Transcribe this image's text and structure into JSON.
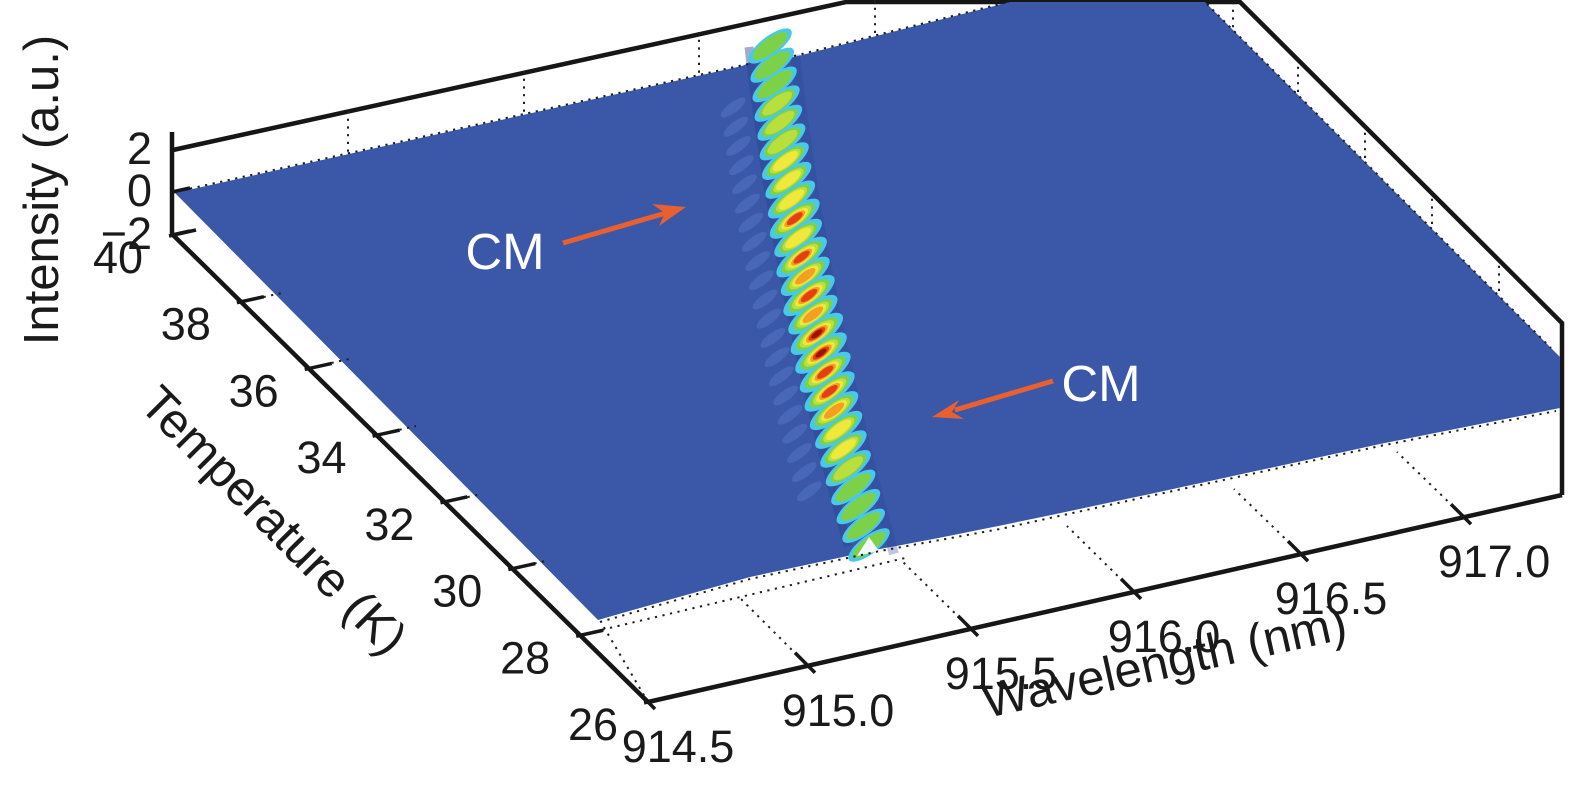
{
  "figure": {
    "kind": "3d-surface-plot",
    "background": "#ffffff"
  },
  "axes": {
    "wavelength": {
      "label": "Wavelength (nm)",
      "ticks": [
        "914.5",
        "915.0",
        "915.5",
        "916.0",
        "916.5",
        "917.0"
      ]
    },
    "temperature": {
      "label": "Temperature (K)",
      "ticks": [
        "40",
        "38",
        "36",
        "34",
        "32",
        "30",
        "28",
        "26"
      ]
    },
    "intensity": {
      "label": "Intensity (a.u.)",
      "ticks": [
        "2",
        "0",
        "−2"
      ]
    }
  },
  "annotations": {
    "cm1": "CM",
    "cm2": "CM"
  },
  "theme": {
    "surface_blue": "#3A57A8",
    "edge_black": "#161616",
    "ink": "#1a1a1a",
    "arrow_orange": "#E8602F",
    "annotation_white": "#ffffff",
    "ghost_blue": "#5E82CC",
    "shadow_blue": "#2C4495",
    "notch_white": "#F2FAFC",
    "ridge_palette": [
      "#49C9E8",
      "#7CD148",
      "#B9DF3C",
      "#F0E93C",
      "#F59E22",
      "#E63E14",
      "#9E1200"
    ]
  },
  "chart_data": {
    "type": "surface",
    "title": "",
    "x_axis": {
      "label": "Wavelength (nm)",
      "range": [
        914.5,
        917.3
      ],
      "ticks": [
        914.5,
        915.0,
        915.5,
        916.0,
        916.5,
        917.0
      ]
    },
    "y_axis": {
      "label": "Temperature (K)",
      "range": [
        26,
        40
      ],
      "ticks": [
        40,
        38,
        36,
        34,
        32,
        30,
        28,
        26
      ]
    },
    "z_axis": {
      "label": "Intensity (a.u.)",
      "range": [
        -2,
        2
      ],
      "ticks": [
        2,
        0,
        -2
      ]
    },
    "baseline_intensity_au": 0,
    "colormap": "jet",
    "grid": "dotted",
    "surface_color_at_baseline": "#3A57A8",
    "series": [
      {
        "name": "CM emission ridge",
        "columns": [
          "temperature_K",
          "wavelength_nm",
          "relative_intensity"
        ],
        "points": [
          [
            40.0,
            916.17,
            0.55
          ],
          [
            39.5,
            916.14,
            0.55
          ],
          [
            38.9,
            916.1,
            0.58
          ],
          [
            38.4,
            916.07,
            0.62
          ],
          [
            37.8,
            916.04,
            0.6
          ],
          [
            37.3,
            916.0,
            0.65
          ],
          [
            36.8,
            915.97,
            0.7
          ],
          [
            36.2,
            915.94,
            0.66
          ],
          [
            35.7,
            915.9,
            0.72
          ],
          [
            35.2,
            915.87,
            0.85
          ],
          [
            34.6,
            915.84,
            0.74
          ],
          [
            34.1,
            915.8,
            0.88
          ],
          [
            33.5,
            915.77,
            0.8
          ],
          [
            33.0,
            915.74,
            0.92
          ],
          [
            32.5,
            915.7,
            0.82
          ],
          [
            31.9,
            915.67,
            0.97
          ],
          [
            31.4,
            915.63,
            0.93
          ],
          [
            30.8,
            915.6,
            0.9
          ],
          [
            30.3,
            915.57,
            0.86
          ],
          [
            29.8,
            915.53,
            0.78
          ],
          [
            29.2,
            915.5,
            0.72
          ],
          [
            28.7,
            915.47,
            0.68
          ],
          [
            28.2,
            915.43,
            0.62
          ],
          [
            27.6,
            915.4,
            0.58
          ],
          [
            27.1,
            915.37,
            0.55
          ],
          [
            26.5,
            915.33,
            0.5
          ],
          [
            26.0,
            915.3,
            0.45
          ]
        ]
      }
    ],
    "annotations": [
      {
        "text": "CM",
        "arrow": "points right toward ridge"
      },
      {
        "text": "CM",
        "arrow": "points left toward ridge"
      }
    ]
  }
}
